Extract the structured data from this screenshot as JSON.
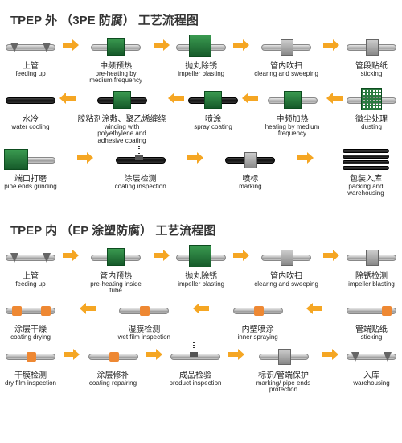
{
  "arrow_color": "#f5a623",
  "section1": {
    "title": "TPEP 外 （3PE 防腐） 工艺流程图",
    "rows": [
      {
        "dir": "right",
        "steps": [
          {
            "cn": "上管",
            "en": "feeding up",
            "img": "pipe-legs"
          },
          {
            "cn": "中频预热",
            "en": "pre-heating by medium frequency",
            "img": "pipe-box-mid"
          },
          {
            "cn": "抛丸除锈",
            "en": "impeller blasting",
            "img": "pipe-box-tall"
          },
          {
            "cn": "管内吹扫",
            "en": "clearing and sweeping",
            "img": "pipe-gray"
          },
          {
            "cn": "管段贴纸",
            "en": "sticking",
            "img": "pipe-gray"
          }
        ]
      },
      {
        "dir": "left",
        "steps": [
          {
            "cn": "水冷",
            "en": "water cooling",
            "img": "pipe-black"
          },
          {
            "cn": "胶粘剂涂敷、聚乙烯缠绕",
            "en": "winding with polyethylene and adhesive coating",
            "img": "pipe-box-mid-black"
          },
          {
            "cn": "喷涂",
            "en": "spray coating",
            "img": "pipe-box-mid-black"
          },
          {
            "cn": "中频加热",
            "en": "heating by medium frequency",
            "img": "pipe-box-mid"
          },
          {
            "cn": "微尘处理",
            "en": "dusting",
            "img": "pipe-mesh"
          }
        ]
      },
      {
        "dir": "right",
        "steps": [
          {
            "cn": "端口打磨",
            "en": "pipe ends grinding",
            "img": "pipe-machine"
          },
          {
            "cn": "涂层检测",
            "en": "coating inspection",
            "img": "pipe-spring-black"
          },
          {
            "cn": "喷标",
            "en": "marking",
            "img": "pipe-gray-black"
          },
          {
            "cn": "包装入库",
            "en": "packing and warehousing",
            "img": "pipe-stack"
          }
        ]
      }
    ]
  },
  "section2": {
    "title": "TPEP 内 （EP 涂塑防腐） 工艺流程图",
    "rows": [
      {
        "dir": "right",
        "steps": [
          {
            "cn": "上管",
            "en": "feeding up",
            "img": "pipe-legs"
          },
          {
            "cn": "管内预热",
            "en": "pre-heating inside tube",
            "img": "pipe-box-mid"
          },
          {
            "cn": "抛丸除锈",
            "en": "impeller blasting",
            "img": "pipe-box-tall"
          },
          {
            "cn": "管内吹扫",
            "en": "clearing and sweeping",
            "img": "pipe-gray"
          },
          {
            "cn": "除锈检测",
            "en": "impeller blasting",
            "img": "pipe-gray"
          }
        ]
      },
      {
        "dir": "left",
        "steps": [
          {
            "cn": "涂层干燥",
            "en": "coating drying",
            "img": "pipe-band"
          },
          {
            "cn": "湿膜检测",
            "en": "wet film inspection",
            "img": "pipe-band-c"
          },
          {
            "cn": "内壁喷涂",
            "en": "inner spraying",
            "img": "pipe-band-c"
          },
          {
            "cn": "管端贴纸",
            "en": "sticking",
            "img": "pipe-band-r"
          }
        ]
      },
      {
        "dir": "right",
        "steps": [
          {
            "cn": "干膜检测",
            "en": "dry film inspection",
            "img": "pipe-band-c"
          },
          {
            "cn": "涂层修补",
            "en": "coating repairing",
            "img": "pipe-band-c"
          },
          {
            "cn": "成品检验",
            "en": "product inspection",
            "img": "pipe-spring"
          },
          {
            "cn": "标识/管端保护",
            "en": "marking/ pipe ends protection",
            "img": "pipe-gray"
          },
          {
            "cn": "入库",
            "en": "warehousing",
            "img": "pipe-legs"
          }
        ]
      }
    ]
  }
}
